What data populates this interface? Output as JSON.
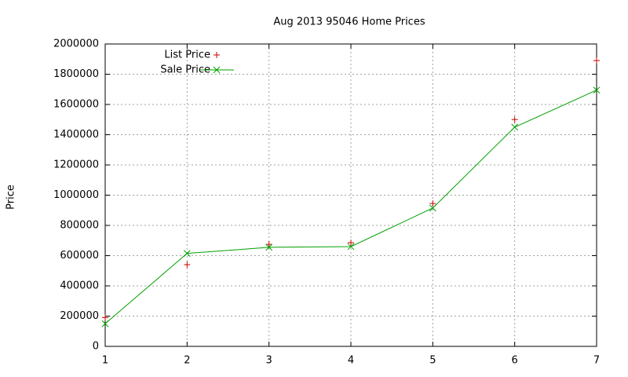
{
  "chart_data": {
    "type": "line",
    "title": "Aug 2013 95046 Home Prices",
    "y_label": "Price",
    "x": [
      1,
      2,
      3,
      4,
      5,
      6,
      7
    ],
    "series": [
      {
        "name": "List Price",
        "color": "#cc0000",
        "marker": "plus",
        "line": false,
        "values": [
          190000,
          540000,
          675000,
          686000,
          945000,
          1500000,
          1890000
        ]
      },
      {
        "name": "Sale Price",
        "color": "#00a000",
        "marker": "cross",
        "line": true,
        "values": [
          150000,
          615000,
          655000,
          660000,
          915000,
          1450000,
          1695000
        ]
      }
    ],
    "xlim": [
      1,
      7
    ],
    "xticks": [
      1,
      2,
      3,
      4,
      5,
      6,
      7
    ],
    "ylim": [
      0,
      2000000
    ],
    "yticks": [
      0,
      200000,
      400000,
      600000,
      800000,
      1000000,
      1200000,
      1400000,
      1600000,
      1800000,
      2000000
    ],
    "grid": true,
    "legend": "top-left"
  }
}
